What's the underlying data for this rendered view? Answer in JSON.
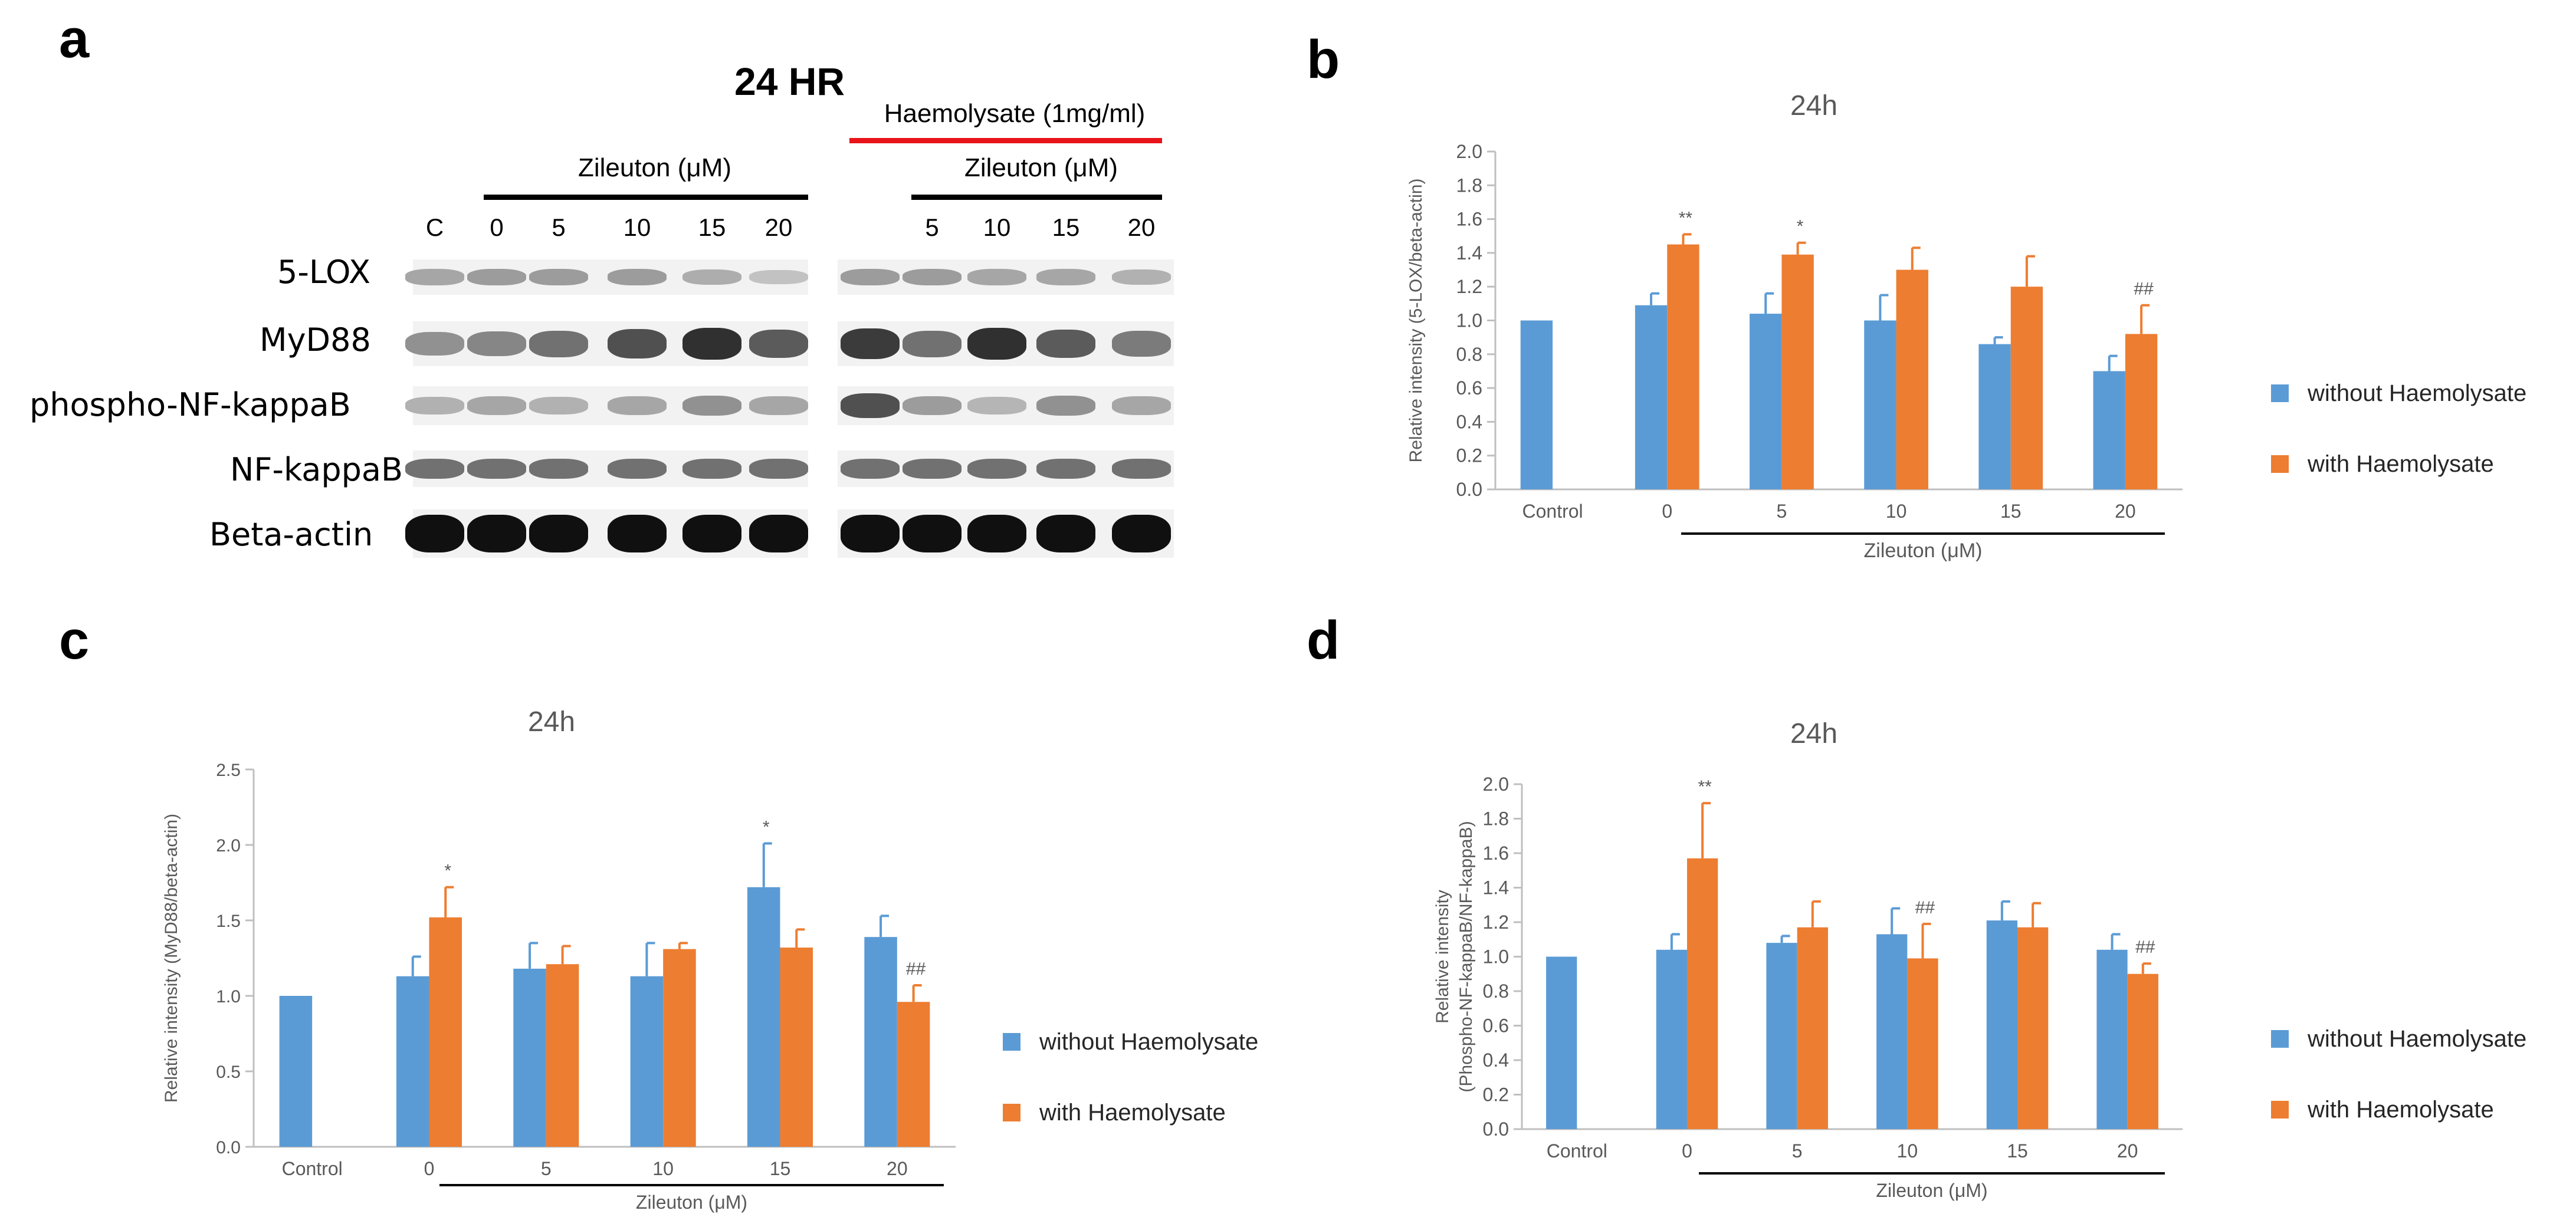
{
  "panels": {
    "a": "a",
    "b": "b",
    "c": "c",
    "d": "d"
  },
  "blot": {
    "title": "24 HR",
    "haemolysate_label": "Haemolysate (1mg/ml)",
    "zileuton_left_label": "Zileuton (μM)",
    "zileuton_right_label": "Zileuton (μM)",
    "lanes_left": [
      "C",
      "0",
      "5",
      "10",
      "15",
      "20"
    ],
    "lanes_right": [
      "5",
      "10",
      "15",
      "20"
    ],
    "rows": [
      "5-LOX",
      "MyD88",
      "phospho-NF-kappaB",
      "NF-kappaB",
      "Beta-actin"
    ],
    "colors": {
      "haemolysate_bar": "#e8141a",
      "zileuton_bar": "#000000"
    }
  },
  "legend": {
    "without": "without Haemolysate",
    "with": "with Haemolysate"
  },
  "colors": {
    "without": "#5b9bd5",
    "with": "#ed7d31",
    "axis": "#bfbfbf",
    "text": "#595959"
  },
  "chart_data": [
    {
      "id": "b",
      "type": "bar",
      "title": "24h",
      "ylabel": "Relative intensity (5-LOX/beta-actin)",
      "xlabel": "Zileuton (μM)",
      "categories": [
        "Control",
        "0",
        "5",
        "10",
        "15",
        "20"
      ],
      "ylim": [
        0,
        2.0
      ],
      "yticks": [
        "0.0",
        "0.2",
        "0.4",
        "0.6",
        "0.8",
        "1.0",
        "1.2",
        "1.4",
        "1.6",
        "1.8",
        "2.0"
      ],
      "series": [
        {
          "name": "without Haemolysate",
          "values": [
            1.0,
            1.09,
            1.04,
            1.0,
            0.86,
            0.7
          ],
          "errors": [
            0.0,
            0.07,
            0.12,
            0.15,
            0.04,
            0.09
          ]
        },
        {
          "name": "with Haemolysate",
          "values": [
            null,
            1.45,
            1.39,
            1.3,
            1.2,
            0.92
          ],
          "errors": [
            null,
            0.06,
            0.07,
            0.13,
            0.18,
            0.17
          ]
        }
      ],
      "annotations": [
        {
          "category": "0",
          "series": 1,
          "text": "**"
        },
        {
          "category": "5",
          "series": 1,
          "text": "*"
        },
        {
          "category": "20",
          "series": 1,
          "text": "##"
        }
      ]
    },
    {
      "id": "c",
      "type": "bar",
      "title": "24h",
      "ylabel": "Relative intensity (MyD88/beta-actin)",
      "xlabel": "Zileuton (μM)",
      "categories": [
        "Control",
        "0",
        "5",
        "10",
        "15",
        "20"
      ],
      "ylim": [
        0,
        2.5
      ],
      "yticks": [
        "0.0",
        "0.5",
        "1.0",
        "1.5",
        "2.0",
        "2.5"
      ],
      "series": [
        {
          "name": "without Haemolysate",
          "values": [
            1.0,
            1.13,
            1.18,
            1.13,
            1.72,
            1.39
          ],
          "errors": [
            0.0,
            0.13,
            0.17,
            0.22,
            0.29,
            0.14
          ]
        },
        {
          "name": "with Haemolysate",
          "values": [
            null,
            1.52,
            1.21,
            1.31,
            1.32,
            0.96
          ],
          "errors": [
            null,
            0.2,
            0.12,
            0.04,
            0.12,
            0.11
          ]
        }
      ],
      "annotations": [
        {
          "category": "0",
          "series": 1,
          "text": "*"
        },
        {
          "category": "15",
          "series": 0,
          "text": "*"
        },
        {
          "category": "20",
          "series": 1,
          "text": "##"
        }
      ]
    },
    {
      "id": "d",
      "type": "bar",
      "title": "24h",
      "ylabel": "Relative intensity (Phospho-NF-kappaB/NF-kappaB)",
      "ylabel_lines": [
        "Relative intensity",
        "(Phospho-NF-kappaB/NF-kappaB)"
      ],
      "xlabel": "Zileuton (μM)",
      "categories": [
        "Control",
        "0",
        "5",
        "10",
        "15",
        "20"
      ],
      "ylim": [
        0,
        2.0
      ],
      "yticks": [
        "0.0",
        "0.2",
        "0.4",
        "0.6",
        "0.8",
        "1.0",
        "1.2",
        "1.4",
        "1.6",
        "1.8",
        "2.0"
      ],
      "series": [
        {
          "name": "without Haemolysate",
          "values": [
            1.0,
            1.04,
            1.08,
            1.13,
            1.21,
            1.04
          ],
          "errors": [
            0.0,
            0.09,
            0.04,
            0.15,
            0.11,
            0.09
          ]
        },
        {
          "name": "with Haemolysate",
          "values": [
            null,
            1.57,
            1.17,
            0.99,
            1.17,
            0.9
          ],
          "errors": [
            null,
            0.32,
            0.15,
            0.2,
            0.14,
            0.06
          ]
        }
      ],
      "annotations": [
        {
          "category": "0",
          "series": 1,
          "text": "**"
        },
        {
          "category": "10",
          "series": 1,
          "text": "##"
        },
        {
          "category": "20",
          "series": 1,
          "text": "##"
        }
      ]
    }
  ]
}
